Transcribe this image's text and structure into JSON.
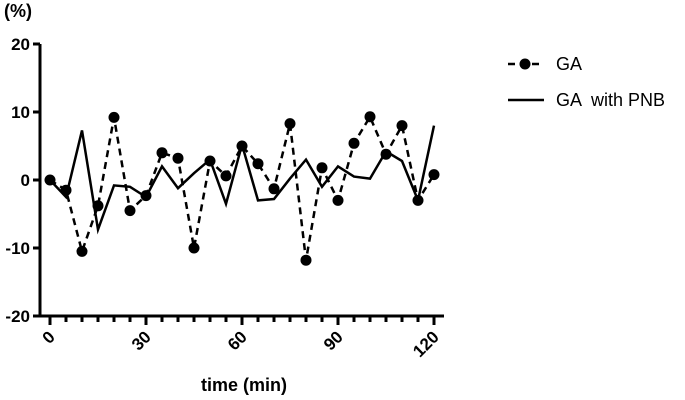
{
  "chart_data": {
    "type": "line",
    "ylabel": "(%)",
    "xlabel": "time (min)",
    "xlim": [
      0,
      120
    ],
    "ylim": [
      -20,
      20
    ],
    "x_ticks": [
      0,
      30,
      60,
      90,
      120
    ],
    "y_ticks": [
      -20,
      -10,
      0,
      10,
      20
    ],
    "grid": false,
    "legend_position": "top-right",
    "series": [
      {
        "name": "GA",
        "style": "dashed-markers",
        "color": "#000000",
        "x": [
          0,
          5,
          10,
          15,
          20,
          25,
          30,
          35,
          40,
          45,
          50,
          55,
          60,
          65,
          70,
          75,
          80,
          85,
          90,
          95,
          100,
          105,
          110,
          115,
          120
        ],
        "values": [
          0,
          -1.5,
          -10.5,
          -3.8,
          9.2,
          -4.5,
          -2.3,
          4.0,
          3.2,
          -10.0,
          2.8,
          0.6,
          5.0,
          2.4,
          -1.3,
          8.3,
          -11.8,
          1.8,
          -3.0,
          5.4,
          9.3,
          3.8,
          8.0,
          -3.0,
          0.8
        ]
      },
      {
        "name": "GA  with PNB",
        "style": "solid",
        "color": "#000000",
        "x": [
          0,
          5,
          10,
          15,
          20,
          25,
          30,
          35,
          40,
          45,
          50,
          55,
          60,
          65,
          70,
          75,
          80,
          85,
          90,
          95,
          100,
          105,
          110,
          115,
          120
        ],
        "values": [
          0,
          -2.5,
          7.3,
          -7.3,
          -0.8,
          -1.0,
          -2.5,
          2.0,
          -1.2,
          1.0,
          3.0,
          -3.5,
          5.2,
          -3.0,
          -2.8,
          0.2,
          3.0,
          -1.0,
          2.0,
          0.5,
          0.2,
          4.2,
          2.8,
          -3.0,
          8.0
        ]
      }
    ]
  }
}
